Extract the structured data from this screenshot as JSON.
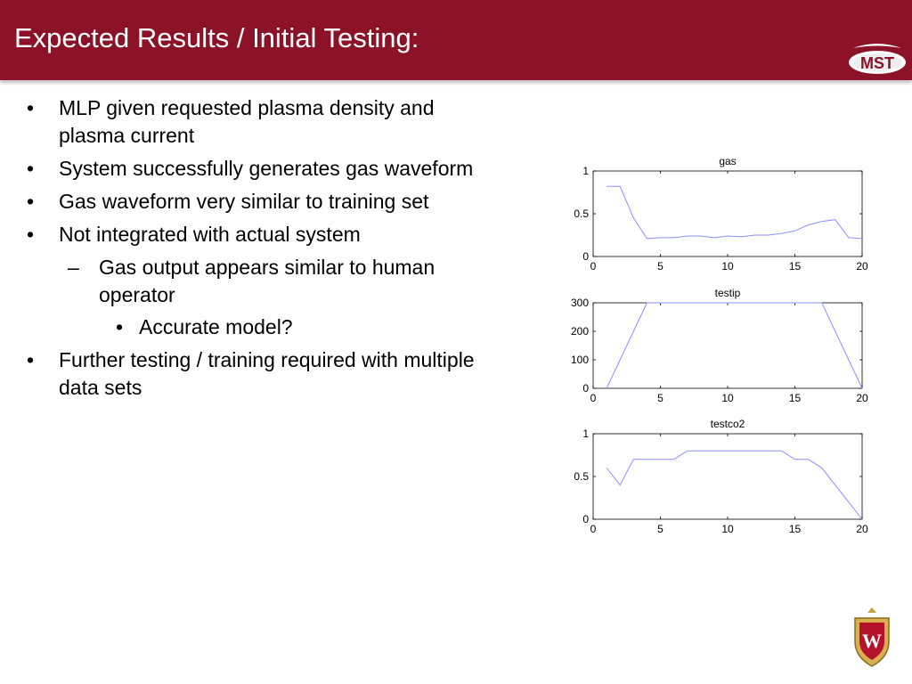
{
  "slide": {
    "title": "Expected Results / Initial Testing:",
    "logo_text": "MST",
    "crest_letter": "W",
    "bullets": [
      {
        "level": 1,
        "marker": "•",
        "text": "MLP given requested plasma density and plasma current"
      },
      {
        "level": 1,
        "marker": "•",
        "text": "System successfully generates gas waveform"
      },
      {
        "level": 1,
        "marker": "•",
        "text": "Gas waveform very similar to training set"
      },
      {
        "level": 1,
        "marker": "•",
        "text": "Not integrated with actual system"
      },
      {
        "level": 2,
        "marker": "–",
        "text": "Gas output appears similar to human operator"
      },
      {
        "level": 3,
        "marker": "•",
        "text": "Accurate model?"
      },
      {
        "level": 1,
        "marker": "•",
        "text": "Further testing / training required with multiple data sets"
      }
    ],
    "colors": {
      "header": "#8c1228",
      "line": "#8f8fff"
    }
  },
  "chart_data": [
    {
      "type": "line",
      "title": "gas",
      "x": [
        1,
        2,
        3,
        4,
        5,
        6,
        7,
        8,
        9,
        10,
        11,
        12,
        13,
        14,
        15,
        16,
        17,
        18,
        19,
        20
      ],
      "y": [
        0.82,
        0.82,
        0.45,
        0.21,
        0.22,
        0.22,
        0.24,
        0.24,
        0.22,
        0.24,
        0.23,
        0.25,
        0.25,
        0.27,
        0.3,
        0.37,
        0.41,
        0.43,
        0.22,
        0.21
      ],
      "xlim": [
        0,
        20
      ],
      "ylim": [
        0,
        1
      ],
      "xticks": [
        "0",
        "5",
        "10",
        "15",
        "20"
      ],
      "yticks": [
        "0",
        "0.5",
        "1"
      ],
      "ytick_values": [
        0,
        0.5,
        1
      ]
    },
    {
      "type": "line",
      "title": "testip",
      "x": [
        1,
        2,
        3,
        4,
        5,
        6,
        7,
        8,
        9,
        10,
        11,
        12,
        13,
        14,
        15,
        16,
        17,
        18,
        19,
        20
      ],
      "y": [
        0,
        100,
        200,
        300,
        300,
        300,
        300,
        300,
        300,
        300,
        300,
        300,
        300,
        300,
        300,
        300,
        300,
        200,
        100,
        0
      ],
      "xlim": [
        0,
        20
      ],
      "ylim": [
        0,
        300
      ],
      "xticks": [
        "0",
        "5",
        "10",
        "15",
        "20"
      ],
      "yticks": [
        "0",
        "100",
        "200",
        "300"
      ],
      "ytick_values": [
        0,
        100,
        200,
        300
      ]
    },
    {
      "type": "line",
      "title": "testco2",
      "x": [
        1,
        2,
        3,
        4,
        5,
        6,
        7,
        8,
        9,
        10,
        11,
        12,
        13,
        14,
        15,
        16,
        17,
        18,
        19,
        20
      ],
      "y": [
        0.6,
        0.4,
        0.7,
        0.7,
        0.7,
        0.7,
        0.8,
        0.8,
        0.8,
        0.8,
        0.8,
        0.8,
        0.8,
        0.8,
        0.7,
        0.7,
        0.6,
        0.4,
        0.2,
        0.0
      ],
      "xlim": [
        0,
        20
      ],
      "ylim": [
        0,
        1
      ],
      "xticks": [
        "0",
        "5",
        "10",
        "15",
        "20"
      ],
      "yticks": [
        "0",
        "0.5",
        "1"
      ],
      "ytick_values": [
        0,
        0.5,
        1
      ]
    }
  ]
}
